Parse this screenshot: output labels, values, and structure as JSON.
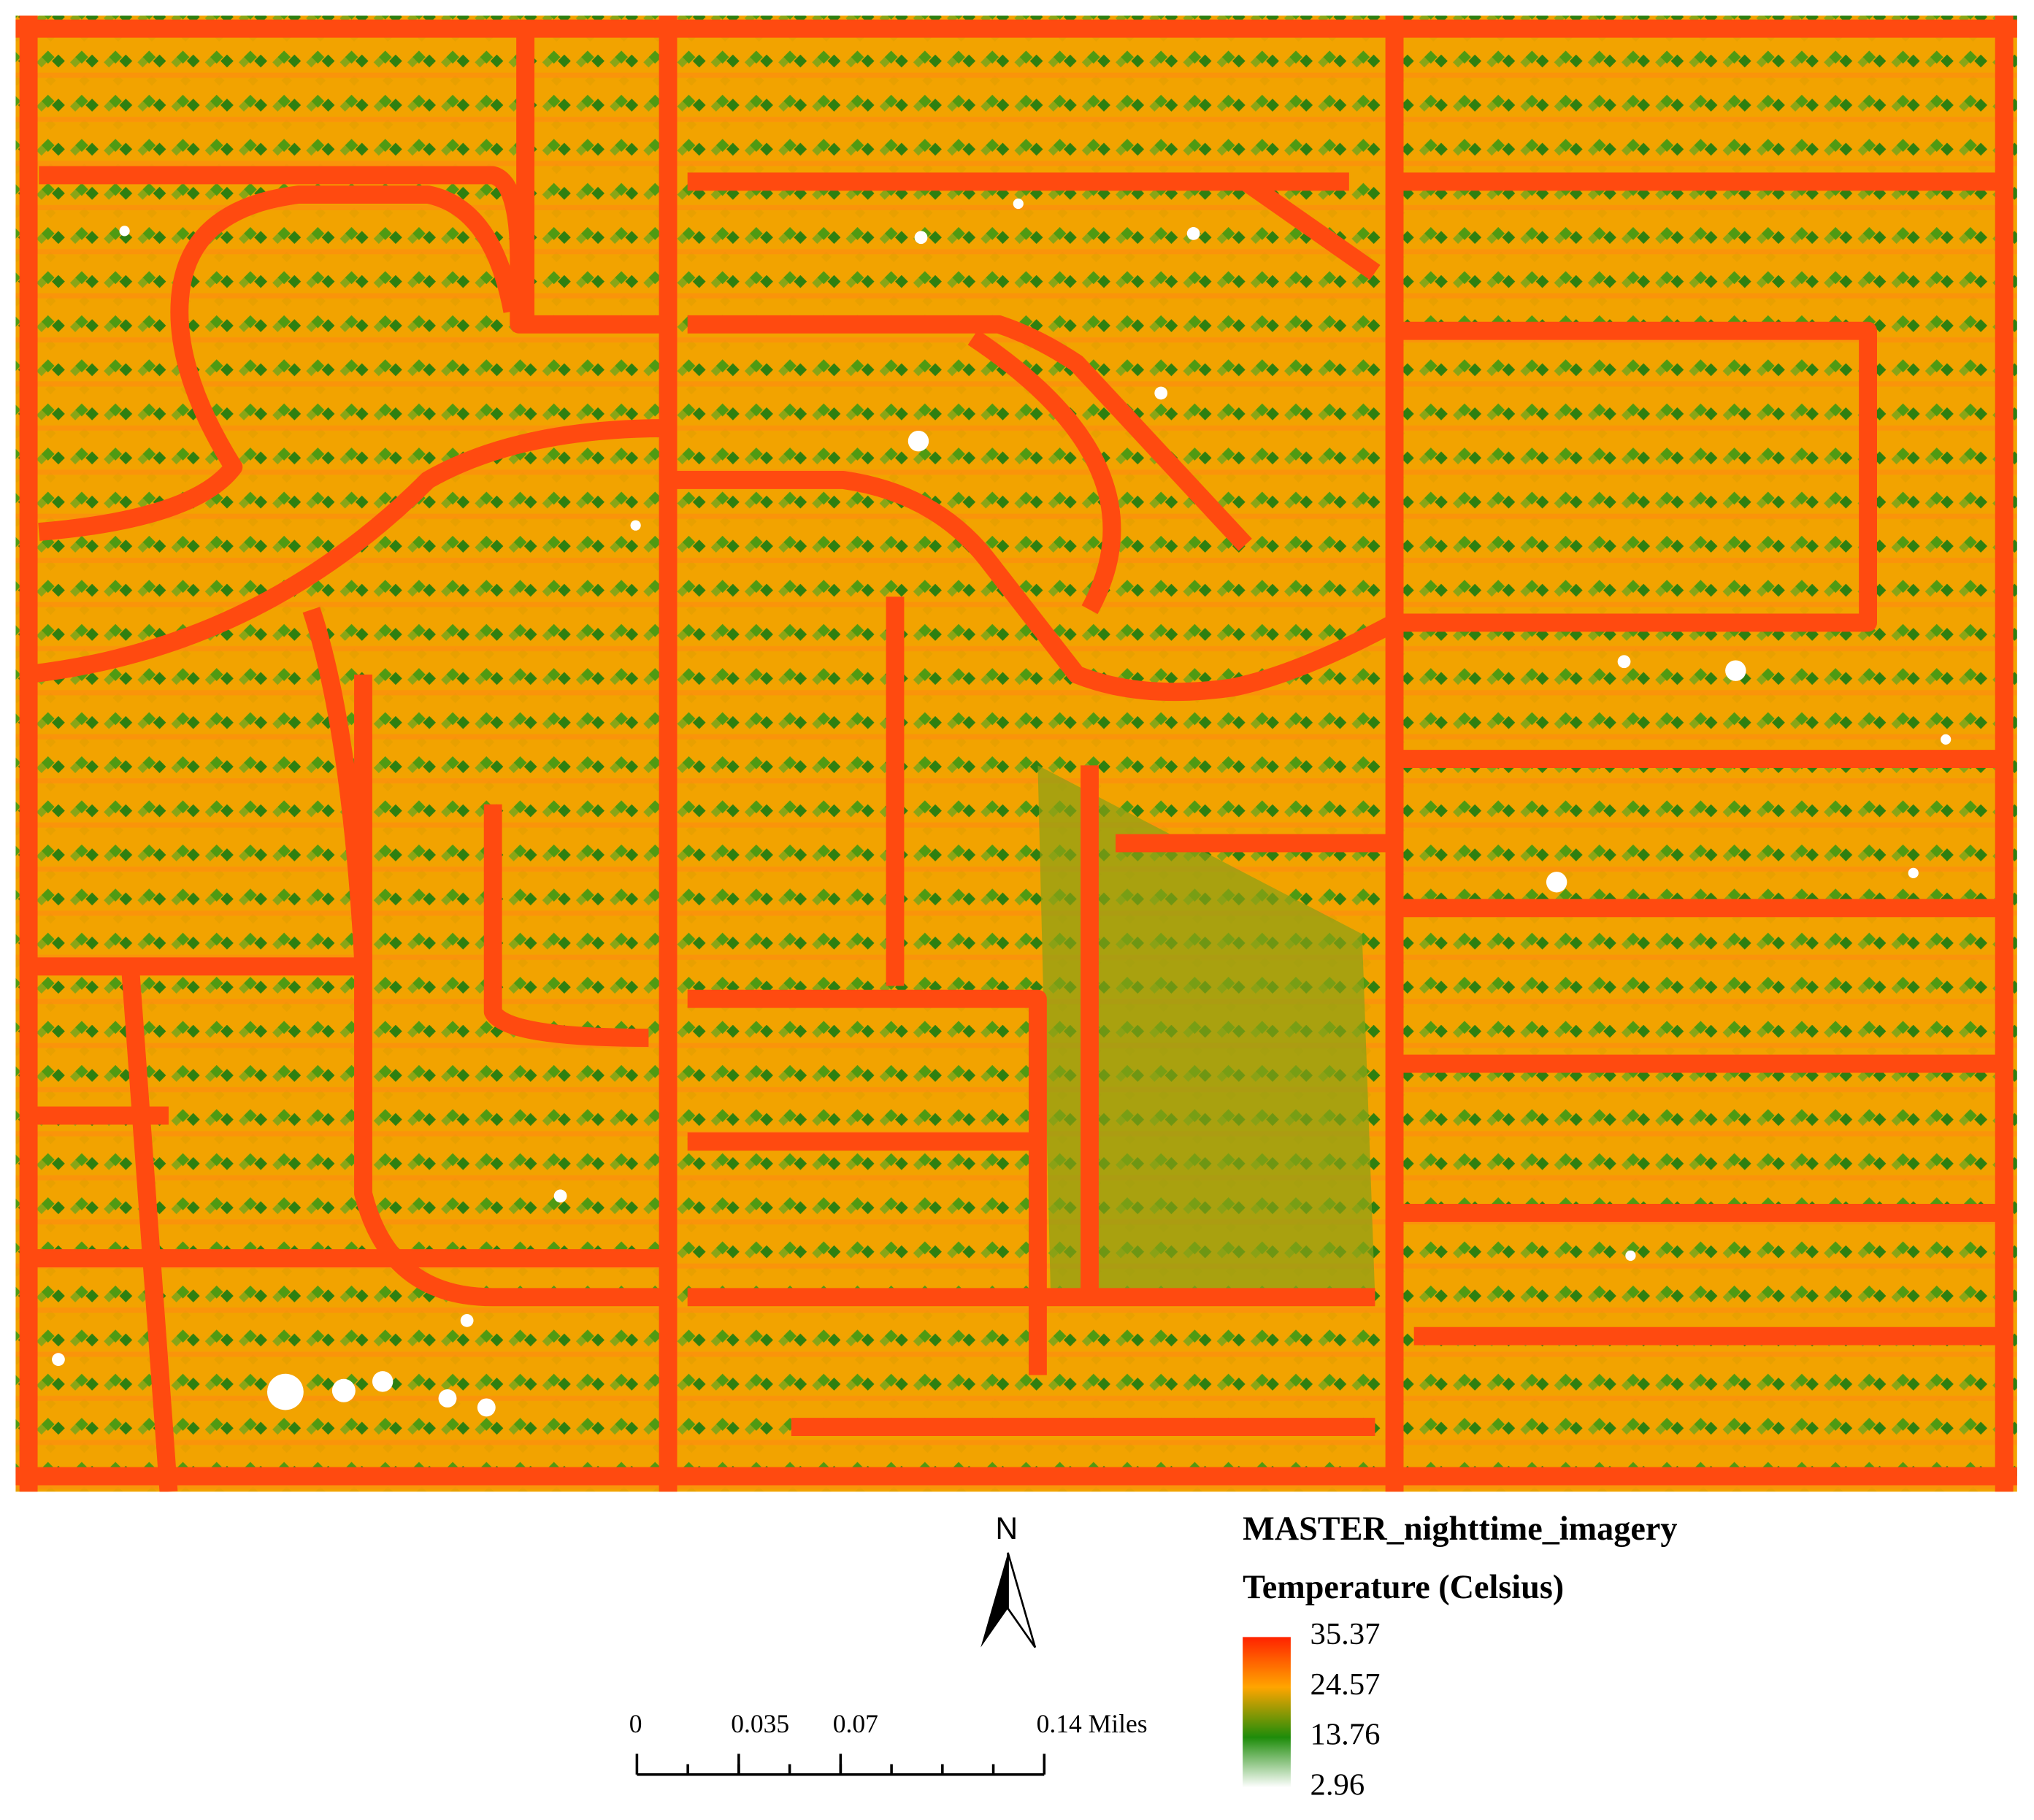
{
  "map": {
    "legend": {
      "title": "MASTER_nighttime_imagery",
      "subtitle": "Temperature (Celsius)",
      "stops": [
        {
          "value": 35.37,
          "color": "#ff2200"
        },
        {
          "value": 24.57,
          "color": "#ffa500"
        },
        {
          "value": 13.76,
          "color": "#1e8c0a"
        },
        {
          "value": 2.96,
          "color": "#ffffff"
        }
      ]
    },
    "north_arrow": {
      "label": "N"
    },
    "scale_bar": {
      "ticks": [
        0,
        0.035,
        0.07,
        {
          "value": 0.14,
          "label": "0.14 Miles"
        }
      ]
    }
  }
}
